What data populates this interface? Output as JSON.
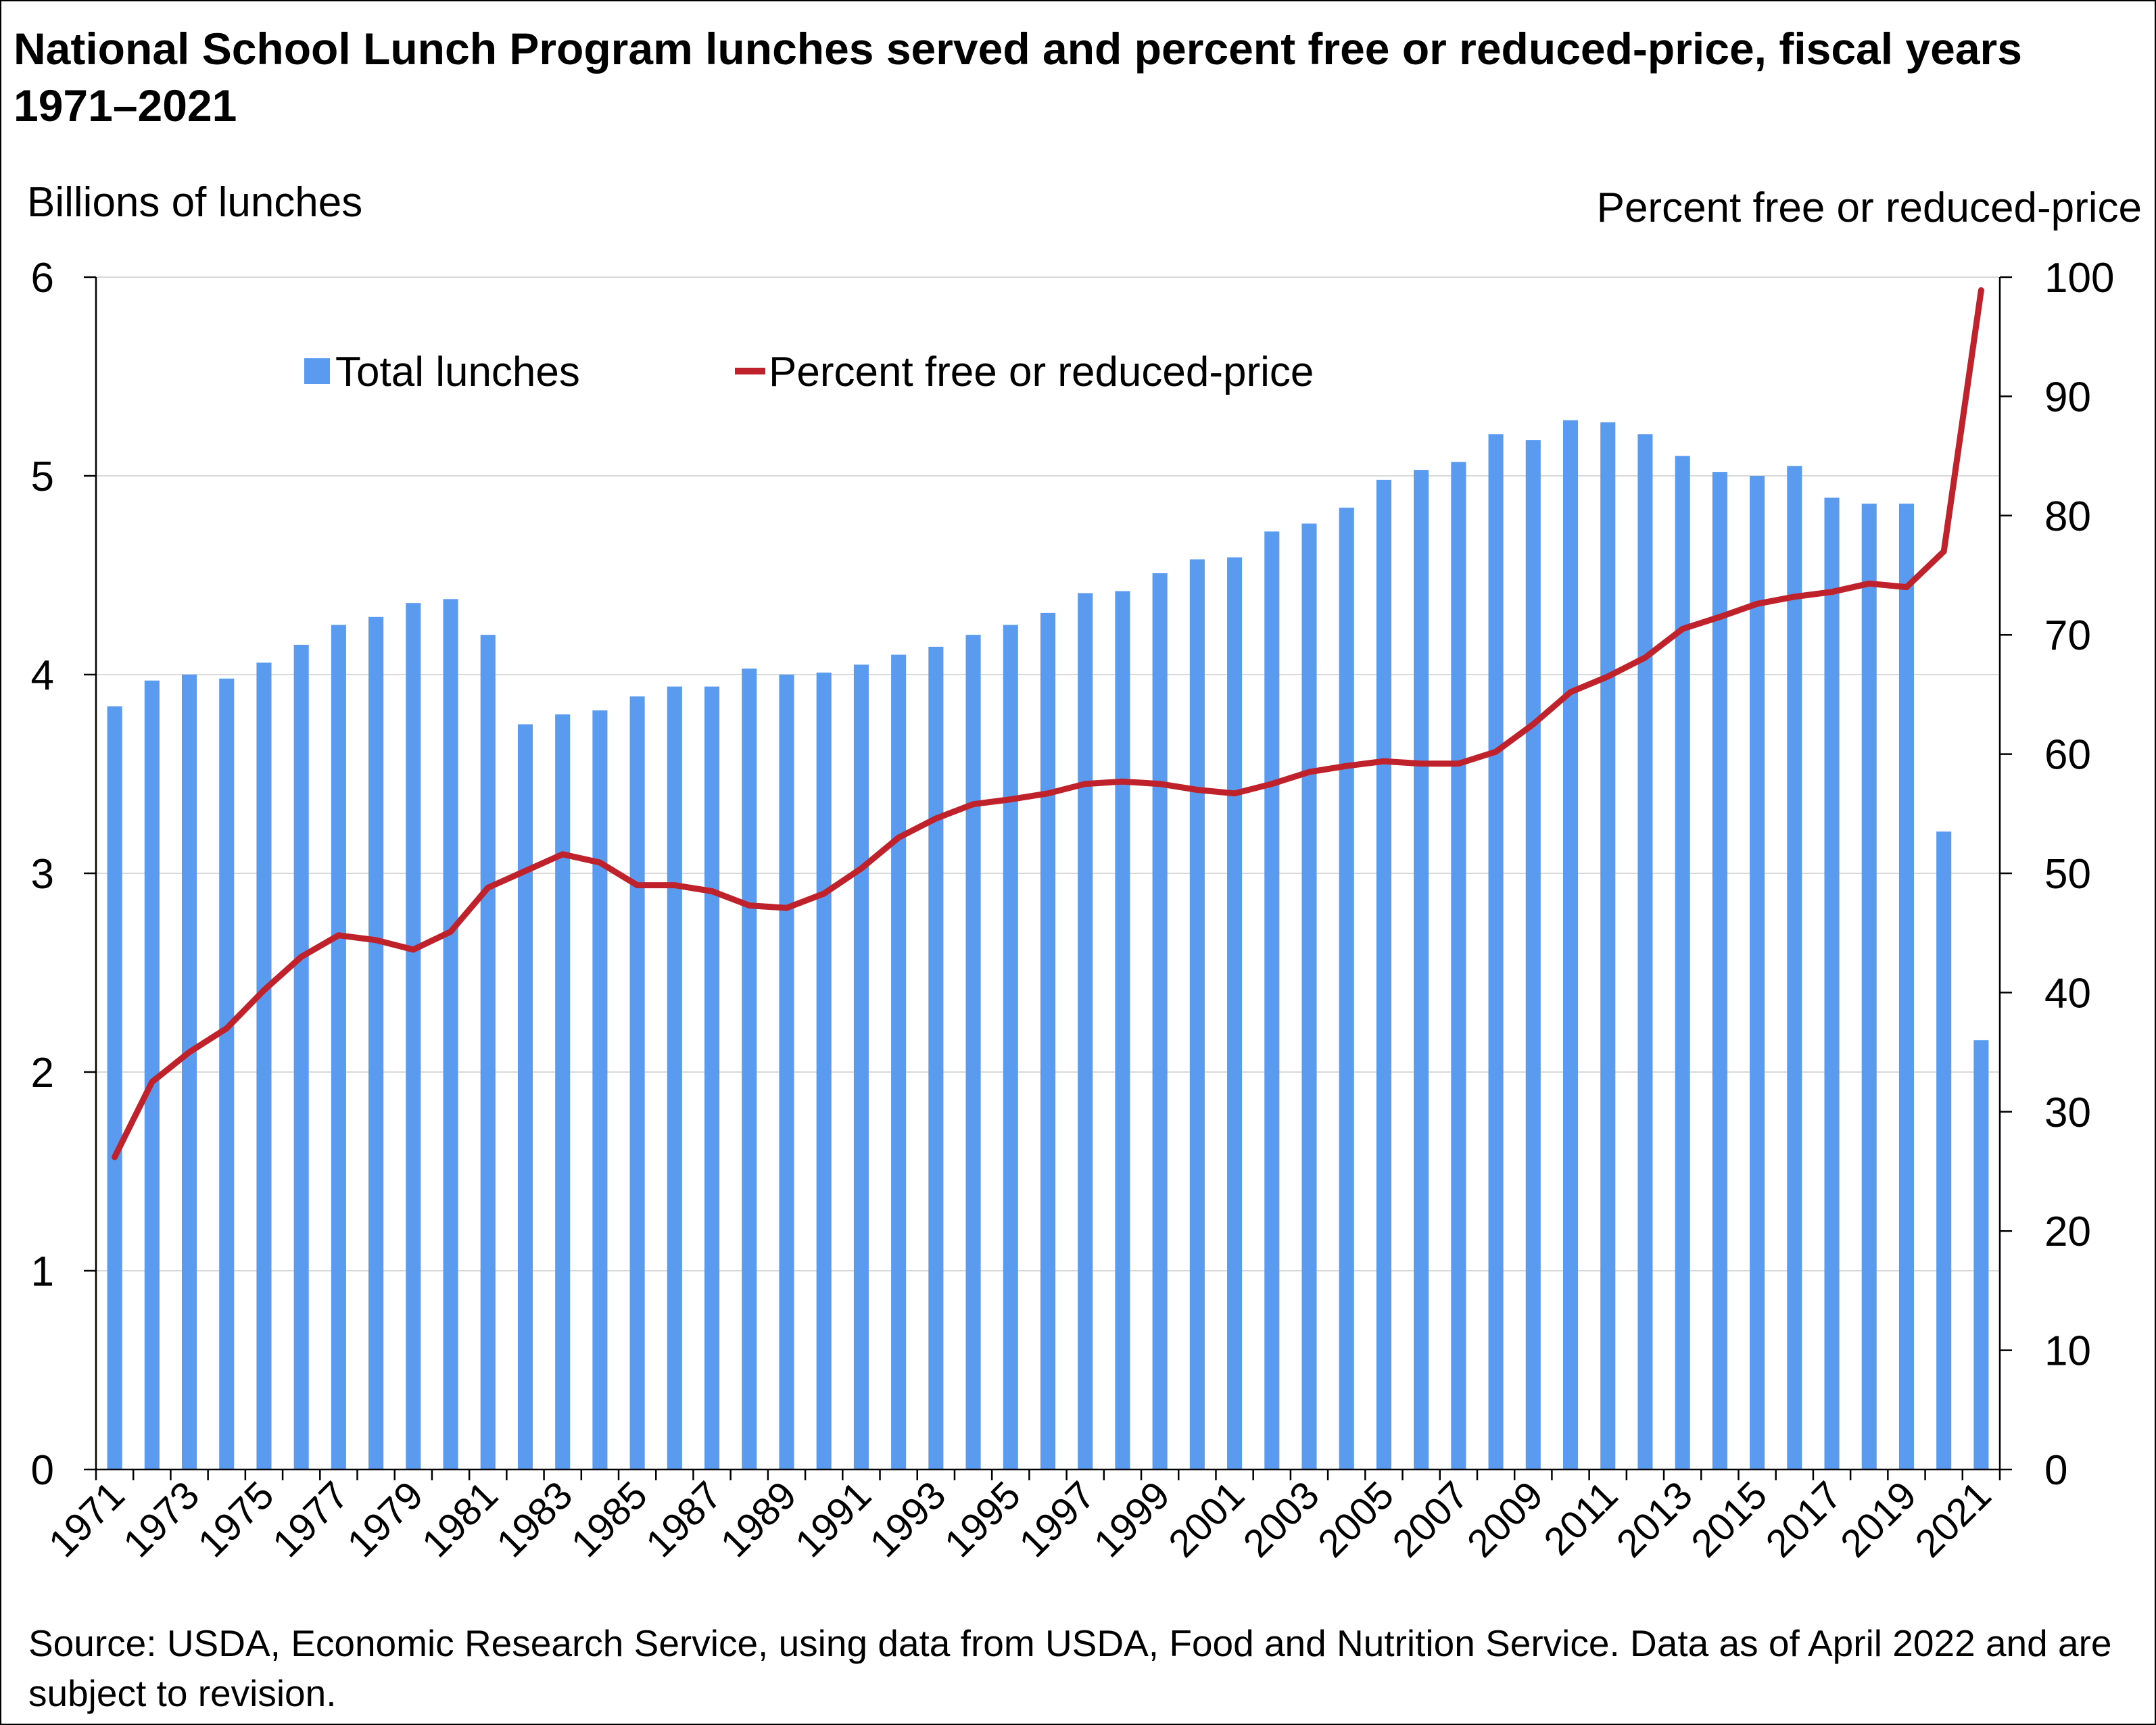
{
  "chart_data": {
    "type": "bar+line",
    "title": "National School Lunch Program lunches served and percent free or reduced-price, fiscal years 1971–2021",
    "left_axis_label": "Billions of lunches",
    "right_axis_label": "Percent free or reduced-price",
    "ylim_left": [
      0,
      6
    ],
    "ylim_right": [
      0,
      100
    ],
    "left_ticks": [
      0,
      1,
      2,
      3,
      4,
      5,
      6
    ],
    "right_ticks": [
      0,
      10,
      20,
      30,
      40,
      50,
      60,
      70,
      80,
      90,
      100
    ],
    "grid": true,
    "legend_position": "top-left",
    "x_tick_labels": [
      "1971",
      "1973",
      "1975",
      "1977",
      "1979",
      "1981",
      "1983",
      "1985",
      "1987",
      "1989",
      "1991",
      "1993",
      "1995",
      "1997",
      "1999",
      "2001",
      "2003",
      "2005",
      "2007",
      "2009",
      "2011",
      "2013",
      "2015",
      "2017",
      "2019",
      "2021"
    ],
    "categories": [
      "1971",
      "1972",
      "1973",
      "1974",
      "1975",
      "1976",
      "1977",
      "1978",
      "1979",
      "1980",
      "1981",
      "1982",
      "1983",
      "1984",
      "1985",
      "1986",
      "1987",
      "1988",
      "1989",
      "1990",
      "1991",
      "1992",
      "1993",
      "1994",
      "1995",
      "1996",
      "1997",
      "1998",
      "1999",
      "2000",
      "2001",
      "2002",
      "2003",
      "2004",
      "2005",
      "2006",
      "2007",
      "2008",
      "2009",
      "2010",
      "2011",
      "2012",
      "2013",
      "2014",
      "2015",
      "2016",
      "2017",
      "2018",
      "2019",
      "2020",
      "2021"
    ],
    "series": [
      {
        "name": "Total lunches",
        "type": "bar",
        "axis": "left",
        "color": "#5B9BEF",
        "values": [
          3.84,
          3.97,
          4.0,
          3.98,
          4.06,
          4.15,
          4.25,
          4.29,
          4.36,
          4.38,
          4.2,
          3.75,
          3.8,
          3.82,
          3.89,
          3.94,
          3.94,
          4.03,
          4.0,
          4.01,
          4.05,
          4.1,
          4.14,
          4.2,
          4.25,
          4.31,
          4.41,
          4.42,
          4.51,
          4.58,
          4.59,
          4.72,
          4.76,
          4.84,
          4.98,
          5.03,
          5.07,
          5.21,
          5.18,
          5.28,
          5.27,
          5.21,
          5.1,
          5.02,
          5.0,
          5.05,
          4.89,
          4.86,
          4.86,
          3.21,
          2.16
        ]
      },
      {
        "name": "Percent free or reduced-price",
        "type": "line",
        "axis": "right",
        "color": "#C0222C",
        "values": [
          26.2,
          32.5,
          35.0,
          37.0,
          40.2,
          43.0,
          44.8,
          44.4,
          43.6,
          45.1,
          48.8,
          50.2,
          51.6,
          50.9,
          49.0,
          49.0,
          48.5,
          47.3,
          47.1,
          48.3,
          50.4,
          53.0,
          54.6,
          55.8,
          56.2,
          56.7,
          57.5,
          57.7,
          57.5,
          57.0,
          56.7,
          57.5,
          58.5,
          59.0,
          59.4,
          59.2,
          59.2,
          60.2,
          62.5,
          65.2,
          66.5,
          68.1,
          70.5,
          71.5,
          72.6,
          73.2,
          73.6,
          74.3,
          74.0,
          77.0,
          98.9
        ]
      }
    ]
  },
  "source_note": "Source: USDA, Economic Research Service, using data from USDA, Food and Nutrition Service. Data as of April 2022 and are subject to revision."
}
